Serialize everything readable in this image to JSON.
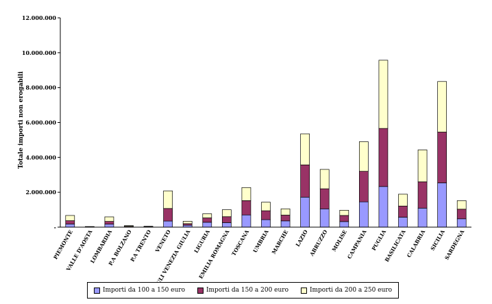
{
  "chart_data": {
    "type": "bar",
    "stacked": true,
    "ylabel": "Totale importi non erogabili",
    "xlabel": "",
    "ylim": [
      0,
      12000000
    ],
    "yticks": [
      0,
      2000000,
      4000000,
      6000000,
      8000000,
      10000000,
      12000000
    ],
    "ytick_labels": [
      "-",
      "2.000.000",
      "4.000.000",
      "6.000.000",
      "8.000.000",
      "10.000.000",
      "12.000.000"
    ],
    "grid": false,
    "legend_position": "bottom",
    "categories": [
      "PIEMONTE",
      "VALLE D'AOSTA",
      "LOMBARDIA",
      "P.A BOLZANO",
      "P.A TRENTO",
      "VENETO",
      "FRIULI VENEZIA GIULIA",
      "LIGURIA",
      "EMILIA ROMAGNA",
      "TOSCANA",
      "UMBRIA",
      "MARCHE",
      "LAZIO",
      "ABRUZZO",
      "MOLISE",
      "CAMPANIA",
      "PUGLIA",
      "BASILICATA",
      "CALABRIA",
      "SICILIA",
      "SARDEGNA"
    ],
    "series": [
      {
        "name": "Importi da  100 a 150 euro",
        "color": "#9999ff",
        "values": [
          180000,
          10000,
          170000,
          20000,
          15000,
          350000,
          110000,
          280000,
          260000,
          700000,
          430000,
          360000,
          1720000,
          1050000,
          320000,
          1450000,
          2330000,
          570000,
          1090000,
          2540000,
          480000
        ]
      },
      {
        "name": "Importi da 150 a 200 euro",
        "color": "#993366",
        "values": [
          190000,
          15000,
          160000,
          30000,
          15000,
          720000,
          90000,
          250000,
          340000,
          820000,
          510000,
          330000,
          1850000,
          1150000,
          350000,
          1750000,
          3330000,
          640000,
          1510000,
          2910000,
          550000
        ]
      },
      {
        "name": "Importi da 200 a 250 euro",
        "color": "#ffffcc",
        "values": [
          300000,
          10000,
          260000,
          40000,
          20000,
          1010000,
          140000,
          240000,
          400000,
          750000,
          490000,
          360000,
          1780000,
          1110000,
          300000,
          1700000,
          3910000,
          680000,
          1830000,
          2900000,
          490000
        ]
      }
    ]
  }
}
